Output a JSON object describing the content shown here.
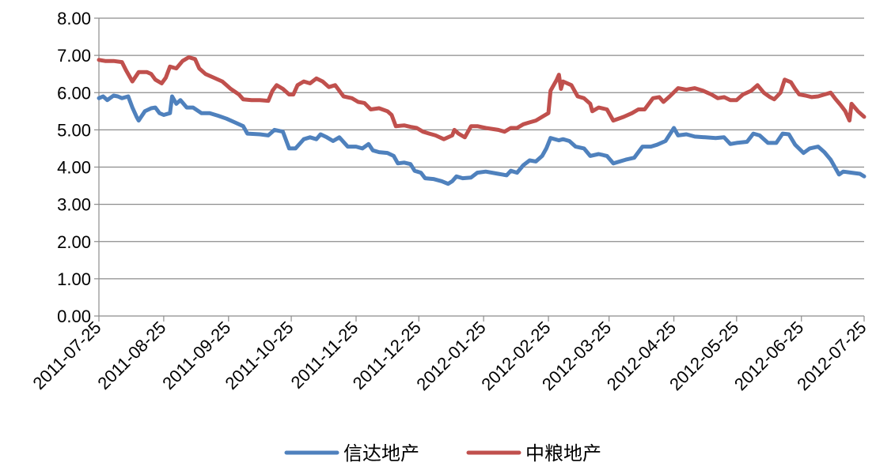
{
  "chart_data": {
    "type": "line",
    "title": "",
    "xlabel": "",
    "ylabel": "",
    "ylim": [
      0,
      8
    ],
    "yticks": [
      "0.00",
      "1.00",
      "2.00",
      "3.00",
      "4.00",
      "5.00",
      "6.00",
      "7.00",
      "8.00"
    ],
    "xticks": [
      "2011-07-25",
      "2011-08-25",
      "2011-09-25",
      "2011-10-25",
      "2011-11-25",
      "2011-12-25",
      "2012-01-25",
      "2012-02-25",
      "2012-03-25",
      "2012-04-25",
      "2012-05-25",
      "2012-06-25",
      "2012-07-25"
    ],
    "grid": "horizontal",
    "legend_position": "bottom",
    "series": [
      {
        "name": "信达地产",
        "color": "#4F81BD",
        "points": [
          [
            "2011-07-25",
            5.85
          ],
          [
            "2011-07-27",
            5.9
          ],
          [
            "2011-07-29",
            5.8
          ],
          [
            "2011-08-01",
            5.92
          ],
          [
            "2011-08-03",
            5.9
          ],
          [
            "2011-08-05",
            5.85
          ],
          [
            "2011-08-08",
            5.9
          ],
          [
            "2011-08-10",
            5.6
          ],
          [
            "2011-08-12",
            5.35
          ],
          [
            "2011-08-13",
            5.25
          ],
          [
            "2011-08-16",
            5.5
          ],
          [
            "2011-08-19",
            5.58
          ],
          [
            "2011-08-21",
            5.6
          ],
          [
            "2011-08-23",
            5.45
          ],
          [
            "2011-08-25",
            5.4
          ],
          [
            "2011-08-28",
            5.45
          ],
          [
            "2011-08-29",
            5.9
          ],
          [
            "2011-08-31",
            5.7
          ],
          [
            "2011-09-02",
            5.8
          ],
          [
            "2011-09-05",
            5.6
          ],
          [
            "2011-09-08",
            5.6
          ],
          [
            "2011-09-12",
            5.45
          ],
          [
            "2011-09-16",
            5.45
          ],
          [
            "2011-09-20",
            5.38
          ],
          [
            "2011-09-24",
            5.3
          ],
          [
            "2011-09-28",
            5.2
          ],
          [
            "2011-10-02",
            5.1
          ],
          [
            "2011-10-04",
            4.9
          ],
          [
            "2011-10-10",
            4.88
          ],
          [
            "2011-10-14",
            4.85
          ],
          [
            "2011-10-17",
            5.0
          ],
          [
            "2011-10-21",
            4.95
          ],
          [
            "2011-10-24",
            4.5
          ],
          [
            "2011-10-27",
            4.5
          ],
          [
            "2011-10-31",
            4.75
          ],
          [
            "2011-11-03",
            4.8
          ],
          [
            "2011-11-06",
            4.75
          ],
          [
            "2011-11-08",
            4.88
          ],
          [
            "2011-11-11",
            4.8
          ],
          [
            "2011-11-14",
            4.7
          ],
          [
            "2011-11-17",
            4.8
          ],
          [
            "2011-11-21",
            4.55
          ],
          [
            "2011-11-25",
            4.55
          ],
          [
            "2011-11-28",
            4.5
          ],
          [
            "2011-12-01",
            4.62
          ],
          [
            "2011-12-03",
            4.45
          ],
          [
            "2011-12-06",
            4.4
          ],
          [
            "2011-12-10",
            4.38
          ],
          [
            "2011-12-13",
            4.3
          ],
          [
            "2011-12-15",
            4.1
          ],
          [
            "2011-12-18",
            4.12
          ],
          [
            "2011-12-21",
            4.08
          ],
          [
            "2011-12-23",
            3.9
          ],
          [
            "2011-12-26",
            3.85
          ],
          [
            "2011-12-28",
            3.7
          ],
          [
            "2012-01-01",
            3.68
          ],
          [
            "2012-01-05",
            3.62
          ],
          [
            "2012-01-08",
            3.55
          ],
          [
            "2012-01-10",
            3.62
          ],
          [
            "2012-01-12",
            3.75
          ],
          [
            "2012-01-15",
            3.7
          ],
          [
            "2012-01-19",
            3.72
          ],
          [
            "2012-01-22",
            3.85
          ],
          [
            "2012-01-26",
            3.88
          ],
          [
            "2012-02-01",
            3.82
          ],
          [
            "2012-02-05",
            3.78
          ],
          [
            "2012-02-07",
            3.9
          ],
          [
            "2012-02-10",
            3.85
          ],
          [
            "2012-02-13",
            4.05
          ],
          [
            "2012-02-16",
            4.18
          ],
          [
            "2012-02-19",
            4.15
          ],
          [
            "2012-02-22",
            4.3
          ],
          [
            "2012-02-24",
            4.5
          ],
          [
            "2012-02-26",
            4.78
          ],
          [
            "2012-03-01",
            4.72
          ],
          [
            "2012-03-03",
            4.75
          ],
          [
            "2012-03-06",
            4.7
          ],
          [
            "2012-03-09",
            4.55
          ],
          [
            "2012-03-13",
            4.5
          ],
          [
            "2012-03-16",
            4.3
          ],
          [
            "2012-03-20",
            4.35
          ],
          [
            "2012-03-24",
            4.3
          ],
          [
            "2012-03-27",
            4.1
          ],
          [
            "2012-04-02",
            4.2
          ],
          [
            "2012-04-06",
            4.25
          ],
          [
            "2012-04-10",
            4.55
          ],
          [
            "2012-04-14",
            4.55
          ],
          [
            "2012-04-17",
            4.6
          ],
          [
            "2012-04-21",
            4.7
          ],
          [
            "2012-04-25",
            5.05
          ],
          [
            "2012-04-27",
            4.85
          ],
          [
            "2012-05-01",
            4.88
          ],
          [
            "2012-05-05",
            4.82
          ],
          [
            "2012-05-10",
            4.8
          ],
          [
            "2012-05-15",
            4.78
          ],
          [
            "2012-05-19",
            4.8
          ],
          [
            "2012-05-22",
            4.62
          ],
          [
            "2012-05-25",
            4.65
          ],
          [
            "2012-05-30",
            4.68
          ],
          [
            "2012-06-02",
            4.9
          ],
          [
            "2012-06-05",
            4.85
          ],
          [
            "2012-06-09",
            4.65
          ],
          [
            "2012-06-13",
            4.65
          ],
          [
            "2012-06-16",
            4.9
          ],
          [
            "2012-06-19",
            4.88
          ],
          [
            "2012-06-22",
            4.6
          ],
          [
            "2012-06-26",
            4.38
          ],
          [
            "2012-06-29",
            4.5
          ],
          [
            "2012-07-03",
            4.55
          ],
          [
            "2012-07-06",
            4.4
          ],
          [
            "2012-07-09",
            4.2
          ],
          [
            "2012-07-13",
            3.8
          ],
          [
            "2012-07-15",
            3.88
          ],
          [
            "2012-07-19",
            3.85
          ],
          [
            "2012-07-23",
            3.82
          ],
          [
            "2012-07-25",
            3.75
          ]
        ]
      },
      {
        "name": "中粮地产",
        "color": "#C0504D",
        "points": [
          [
            "2011-07-25",
            6.88
          ],
          [
            "2011-07-28",
            6.85
          ],
          [
            "2011-08-01",
            6.85
          ],
          [
            "2011-08-05",
            6.82
          ],
          [
            "2011-08-07",
            6.6
          ],
          [
            "2011-08-10",
            6.3
          ],
          [
            "2011-08-13",
            6.55
          ],
          [
            "2011-08-17",
            6.55
          ],
          [
            "2011-08-19",
            6.5
          ],
          [
            "2011-08-21",
            6.35
          ],
          [
            "2011-08-24",
            6.25
          ],
          [
            "2011-08-26",
            6.4
          ],
          [
            "2011-08-28",
            6.7
          ],
          [
            "2011-08-31",
            6.65
          ],
          [
            "2011-09-03",
            6.85
          ],
          [
            "2011-09-06",
            6.95
          ],
          [
            "2011-09-09",
            6.9
          ],
          [
            "2011-09-11",
            6.65
          ],
          [
            "2011-09-14",
            6.5
          ],
          [
            "2011-09-18",
            6.4
          ],
          [
            "2011-09-22",
            6.3
          ],
          [
            "2011-09-24",
            6.2
          ],
          [
            "2011-09-26",
            6.1
          ],
          [
            "2011-09-30",
            5.95
          ],
          [
            "2011-10-02",
            5.82
          ],
          [
            "2011-10-06",
            5.8
          ],
          [
            "2011-10-10",
            5.8
          ],
          [
            "2011-10-14",
            5.78
          ],
          [
            "2011-10-16",
            6.05
          ],
          [
            "2011-10-18",
            6.2
          ],
          [
            "2011-10-21",
            6.1
          ],
          [
            "2011-10-24",
            5.95
          ],
          [
            "2011-10-26",
            5.95
          ],
          [
            "2011-10-28",
            6.2
          ],
          [
            "2011-10-31",
            6.3
          ],
          [
            "2011-11-03",
            6.25
          ],
          [
            "2011-11-06",
            6.38
          ],
          [
            "2011-11-09",
            6.3
          ],
          [
            "2011-11-12",
            6.15
          ],
          [
            "2011-11-15",
            6.2
          ],
          [
            "2011-11-19",
            5.9
          ],
          [
            "2011-11-23",
            5.85
          ],
          [
            "2011-11-26",
            5.75
          ],
          [
            "2011-11-29",
            5.72
          ],
          [
            "2011-12-02",
            5.55
          ],
          [
            "2011-12-06",
            5.58
          ],
          [
            "2011-12-10",
            5.5
          ],
          [
            "2011-12-12",
            5.4
          ],
          [
            "2011-12-14",
            5.1
          ],
          [
            "2011-12-18",
            5.12
          ],
          [
            "2011-12-21",
            5.08
          ],
          [
            "2011-12-24",
            5.05
          ],
          [
            "2011-12-27",
            4.95
          ],
          [
            "2011-12-30",
            4.9
          ],
          [
            "2012-01-02",
            4.85
          ],
          [
            "2012-01-06",
            4.75
          ],
          [
            "2012-01-10",
            4.85
          ],
          [
            "2012-01-11",
            5.0
          ],
          [
            "2012-01-13",
            4.9
          ],
          [
            "2012-01-16",
            4.8
          ],
          [
            "2012-01-19",
            5.1
          ],
          [
            "2012-01-22",
            5.1
          ],
          [
            "2012-01-26",
            5.05
          ],
          [
            "2012-02-01",
            5.0
          ],
          [
            "2012-02-04",
            4.95
          ],
          [
            "2012-02-07",
            5.05
          ],
          [
            "2012-02-10",
            5.05
          ],
          [
            "2012-02-13",
            5.15
          ],
          [
            "2012-02-16",
            5.2
          ],
          [
            "2012-02-19",
            5.25
          ],
          [
            "2012-02-22",
            5.35
          ],
          [
            "2012-02-25",
            5.45
          ],
          [
            "2012-02-26",
            6.05
          ],
          [
            "2012-02-29",
            6.35
          ],
          [
            "2012-03-01",
            6.48
          ],
          [
            "2012-03-02",
            6.1
          ],
          [
            "2012-03-03",
            6.3
          ],
          [
            "2012-03-07",
            6.2
          ],
          [
            "2012-03-10",
            5.9
          ],
          [
            "2012-03-13",
            5.85
          ],
          [
            "2012-03-16",
            5.7
          ],
          [
            "2012-03-17",
            5.5
          ],
          [
            "2012-03-20",
            5.6
          ],
          [
            "2012-03-24",
            5.55
          ],
          [
            "2012-03-27",
            5.25
          ],
          [
            "2012-04-01",
            5.35
          ],
          [
            "2012-04-05",
            5.45
          ],
          [
            "2012-04-08",
            5.55
          ],
          [
            "2012-04-11",
            5.55
          ],
          [
            "2012-04-15",
            5.85
          ],
          [
            "2012-04-18",
            5.88
          ],
          [
            "2012-04-20",
            5.75
          ],
          [
            "2012-04-23",
            5.9
          ],
          [
            "2012-04-27",
            6.12
          ],
          [
            "2012-05-01",
            6.08
          ],
          [
            "2012-05-05",
            6.12
          ],
          [
            "2012-05-09",
            6.05
          ],
          [
            "2012-05-13",
            5.95
          ],
          [
            "2012-05-16",
            5.85
          ],
          [
            "2012-05-19",
            5.88
          ],
          [
            "2012-05-22",
            5.8
          ],
          [
            "2012-05-25",
            5.8
          ],
          [
            "2012-05-28",
            5.95
          ],
          [
            "2012-06-01",
            6.05
          ],
          [
            "2012-06-04",
            6.2
          ],
          [
            "2012-06-07",
            6.0
          ],
          [
            "2012-06-10",
            5.88
          ],
          [
            "2012-06-12",
            5.82
          ],
          [
            "2012-06-15",
            6.0
          ],
          [
            "2012-06-17",
            6.35
          ],
          [
            "2012-06-20",
            6.28
          ],
          [
            "2012-06-22",
            6.1
          ],
          [
            "2012-06-24",
            5.95
          ],
          [
            "2012-06-27",
            5.92
          ],
          [
            "2012-06-30",
            5.88
          ],
          [
            "2012-07-03",
            5.9
          ],
          [
            "2012-07-06",
            5.95
          ],
          [
            "2012-07-09",
            6.0
          ],
          [
            "2012-07-11",
            5.85
          ],
          [
            "2012-07-14",
            5.65
          ],
          [
            "2012-07-16",
            5.5
          ],
          [
            "2012-07-18",
            5.25
          ],
          [
            "2012-07-19",
            5.7
          ],
          [
            "2012-07-22",
            5.5
          ],
          [
            "2012-07-25",
            5.35
          ]
        ]
      }
    ]
  }
}
